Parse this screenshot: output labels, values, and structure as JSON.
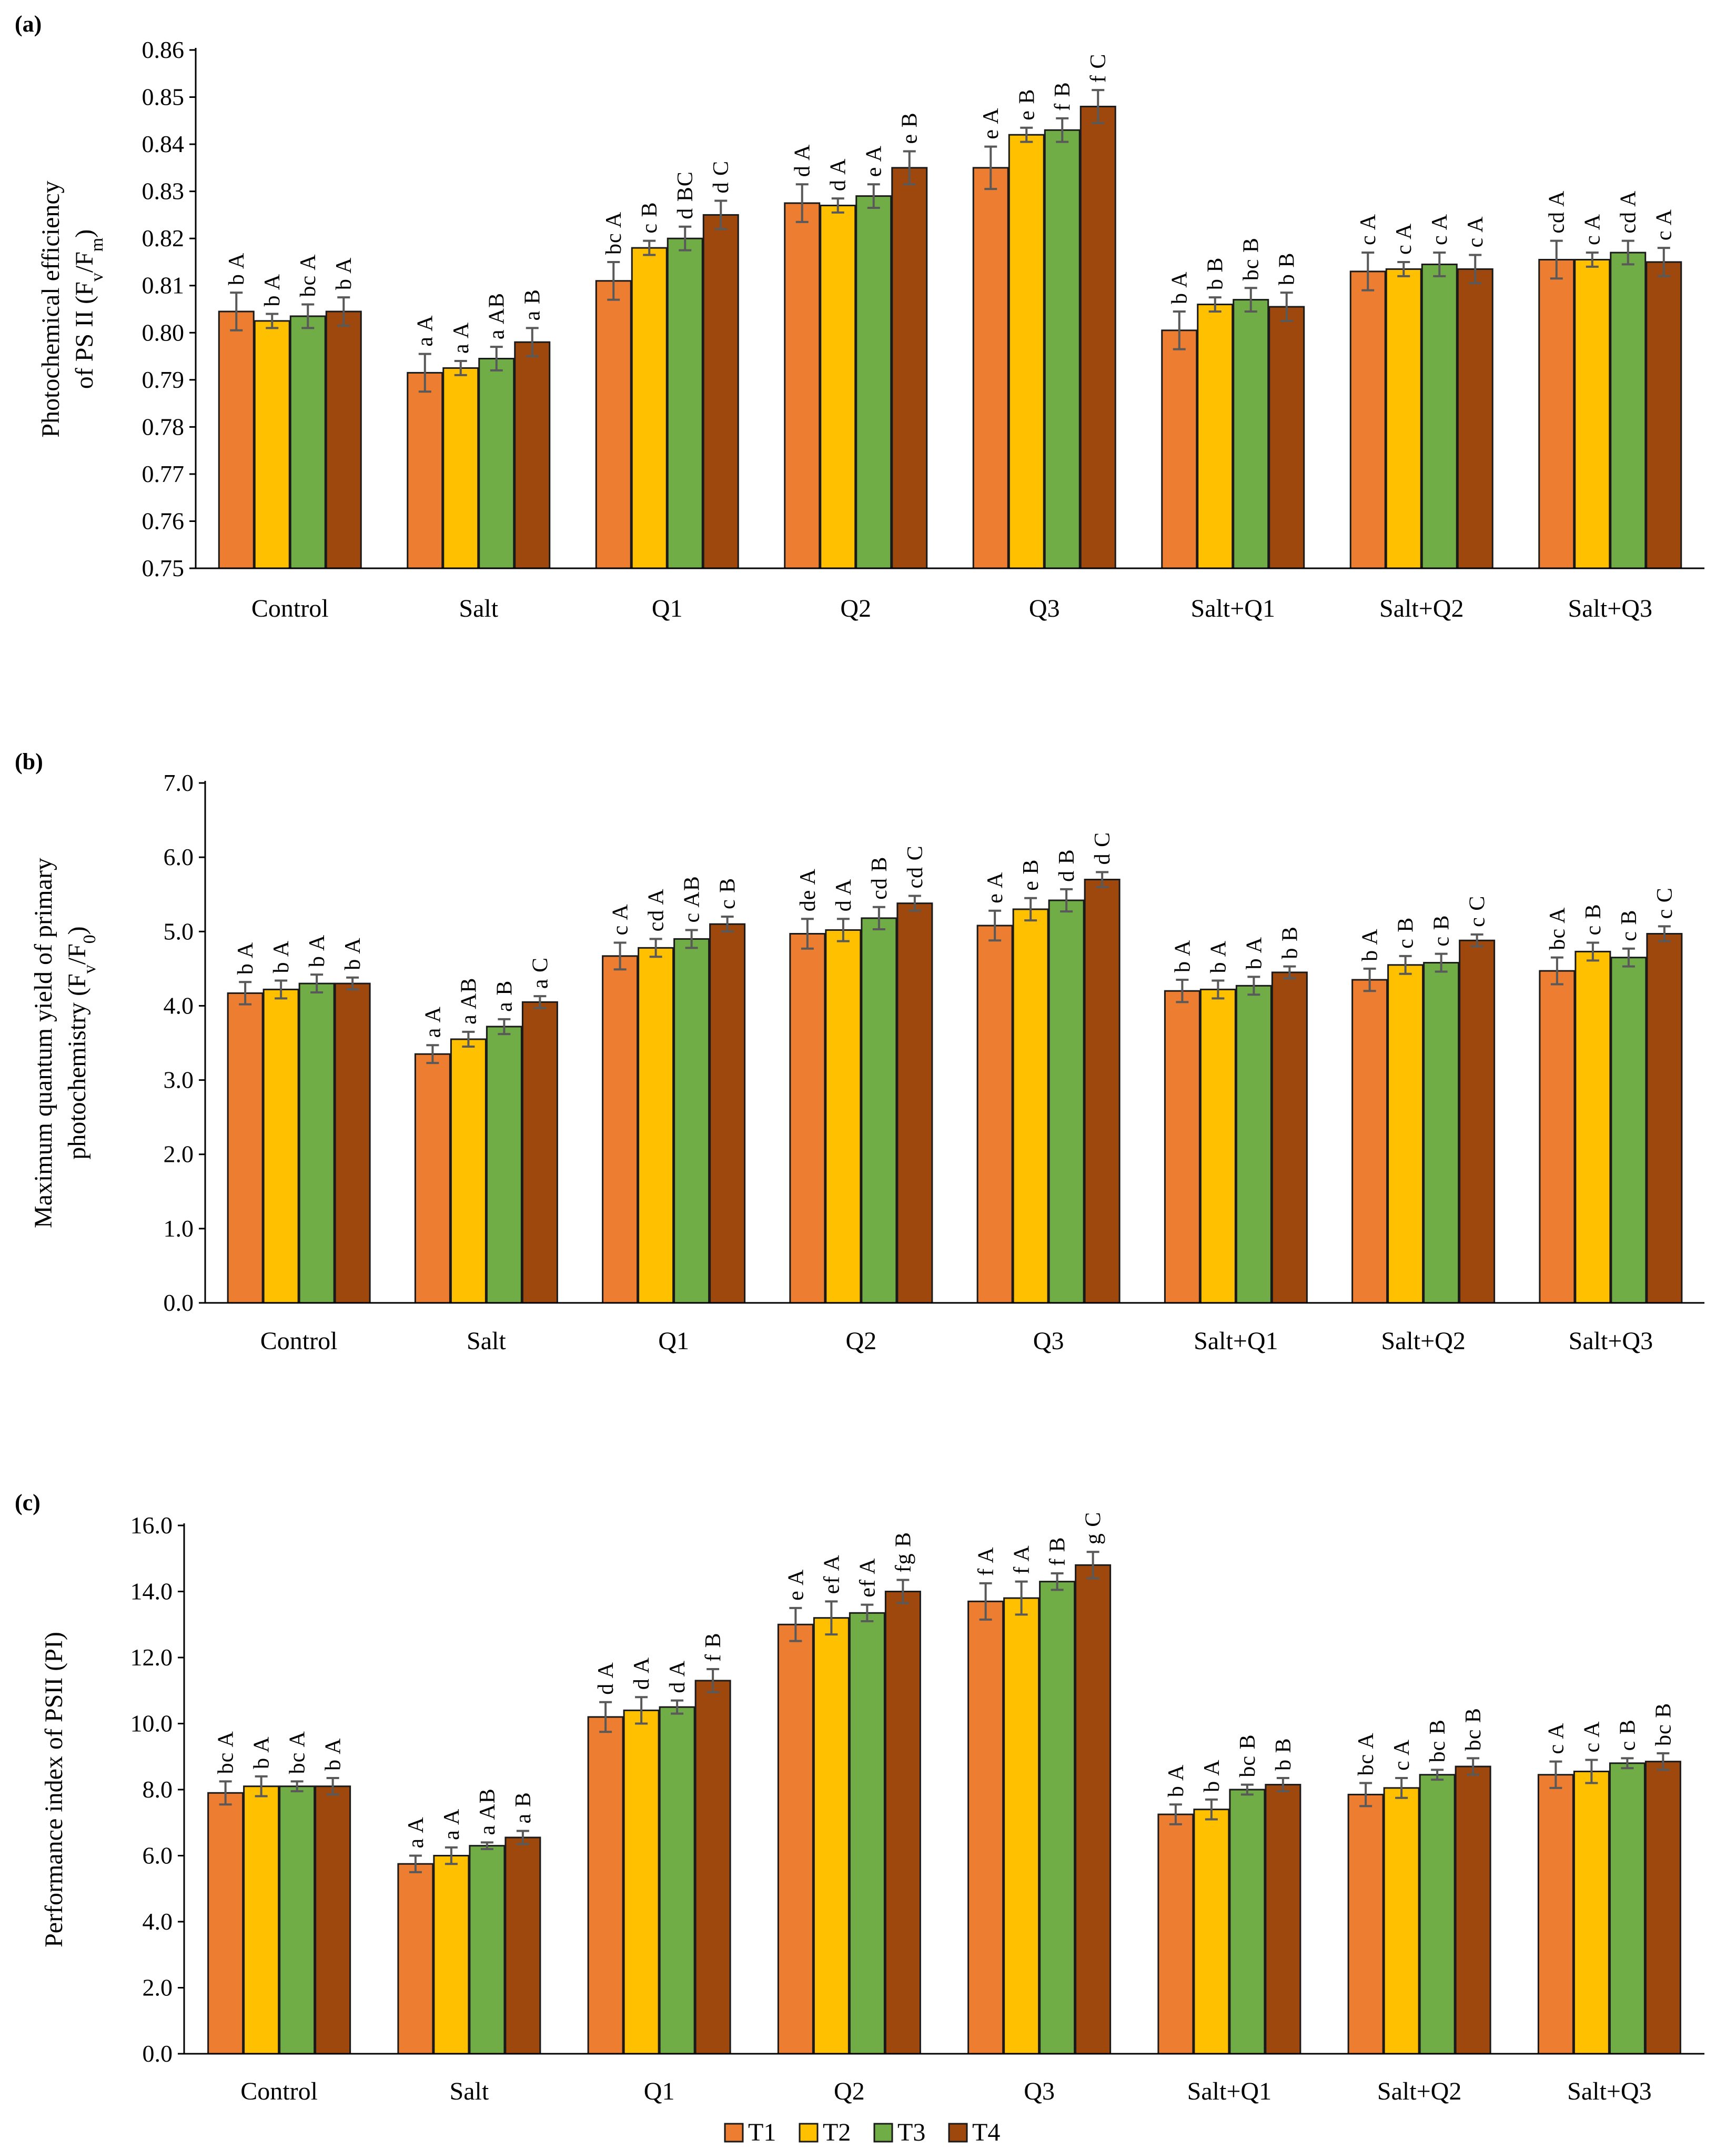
{
  "chart_data": [
    {
      "panel": "(a)",
      "type": "bar",
      "categories": [
        "Control",
        "Salt",
        "Q1",
        "Q2",
        "Q3",
        "Salt+Q1",
        "Salt+Q2",
        "Salt+Q3"
      ],
      "ylabel_lines": [
        "Photochemical efficiency",
        "of PS II (Fv/Fm)"
      ],
      "ylim": [
        0.75,
        0.86
      ],
      "yticks": [
        0.75,
        0.76,
        0.77,
        0.78,
        0.79,
        0.8,
        0.81,
        0.82,
        0.83,
        0.84,
        0.85,
        0.86
      ],
      "tick_decimals": 2,
      "series": [
        {
          "name": "T1",
          "color": "#ED7D31",
          "values": [
            0.8045,
            0.7915,
            0.811,
            0.8275,
            0.835,
            0.8005,
            0.813,
            0.8155
          ],
          "errors": [
            0.004,
            0.004,
            0.004,
            0.004,
            0.0045,
            0.004,
            0.004,
            0.004
          ],
          "labels": [
            "b A",
            "a A",
            "bc A",
            "d A",
            "e A",
            "b A",
            "c A",
            "cd A"
          ]
        },
        {
          "name": "T2",
          "color": "#FFC000",
          "values": [
            0.8025,
            0.7925,
            0.818,
            0.827,
            0.842,
            0.806,
            0.8135,
            0.8155
          ],
          "errors": [
            0.0015,
            0.0015,
            0.0015,
            0.0015,
            0.0015,
            0.0015,
            0.0015,
            0.0015
          ],
          "labels": [
            "b A",
            "a A",
            "c B",
            "d A",
            "e B",
            "b B",
            "c A",
            "c A"
          ]
        },
        {
          "name": "T3",
          "color": "#70AD47",
          "values": [
            0.8035,
            0.7945,
            0.82,
            0.829,
            0.843,
            0.807,
            0.8145,
            0.817
          ],
          "errors": [
            0.0025,
            0.0025,
            0.0025,
            0.0025,
            0.0025,
            0.0025,
            0.0025,
            0.0025
          ],
          "labels": [
            "bc A",
            "a AB",
            "d BC",
            "e A",
            "f B",
            "bc B",
            "c A",
            "cd A"
          ]
        },
        {
          "name": "T4",
          "color": "#9E480E",
          "values": [
            0.8045,
            0.798,
            0.825,
            0.835,
            0.848,
            0.8055,
            0.8135,
            0.815
          ],
          "errors": [
            0.003,
            0.003,
            0.003,
            0.0035,
            0.0035,
            0.003,
            0.003,
            0.003
          ],
          "labels": [
            "b A",
            "a B",
            "d C",
            "e B",
            "f C",
            "b B",
            "c A",
            "c A"
          ]
        }
      ]
    },
    {
      "panel": "(b)",
      "type": "bar",
      "categories": [
        "Control",
        "Salt",
        "Q1",
        "Q2",
        "Q3",
        "Salt+Q1",
        "Salt+Q2",
        "Salt+Q3"
      ],
      "ylabel_lines": [
        "Maximum quantum yield of primary",
        "photochemistry (Fv/F0)"
      ],
      "ylim": [
        0,
        7
      ],
      "yticks": [
        0,
        1,
        2,
        3,
        4,
        5,
        6,
        7
      ],
      "tick_decimals": 1,
      "series": [
        {
          "name": "T1",
          "color": "#ED7D31",
          "values": [
            4.17,
            3.35,
            4.67,
            4.97,
            5.08,
            4.2,
            4.35,
            4.47
          ],
          "errors": [
            0.15,
            0.12,
            0.18,
            0.2,
            0.2,
            0.15,
            0.15,
            0.18
          ],
          "labels": [
            "b A",
            "a A",
            "c A",
            "de A",
            "e A",
            "b A",
            "b A",
            "bc A"
          ]
        },
        {
          "name": "T2",
          "color": "#FFC000",
          "values": [
            4.22,
            3.55,
            4.78,
            5.02,
            5.3,
            4.22,
            4.55,
            4.73
          ],
          "errors": [
            0.12,
            0.1,
            0.12,
            0.15,
            0.15,
            0.12,
            0.12,
            0.12
          ],
          "labels": [
            "b A",
            "a AB",
            "cd A",
            "d A",
            "e B",
            "b A",
            "c B",
            "c B"
          ]
        },
        {
          "name": "T3",
          "color": "#70AD47",
          "values": [
            4.3,
            3.72,
            4.9,
            5.18,
            5.42,
            4.27,
            4.58,
            4.65
          ],
          "errors": [
            0.12,
            0.1,
            0.12,
            0.15,
            0.15,
            0.12,
            0.12,
            0.12
          ],
          "labels": [
            "b A",
            "a B",
            "c AB",
            "cd B",
            "d B",
            "b A",
            "c B",
            "c B"
          ]
        },
        {
          "name": "T4",
          "color": "#9E480E",
          "values": [
            4.3,
            4.05,
            5.1,
            5.38,
            5.7,
            4.45,
            4.88,
            4.97
          ],
          "errors": [
            0.08,
            0.08,
            0.1,
            0.1,
            0.1,
            0.08,
            0.08,
            0.1
          ],
          "labels": [
            "b A",
            "a C",
            "c B",
            "cd C",
            "d C",
            "b B",
            "c C",
            "c C"
          ]
        }
      ]
    },
    {
      "panel": "(c)",
      "type": "bar",
      "categories": [
        "Control",
        "Salt",
        "Q1",
        "Q2",
        "Q3",
        "Salt+Q1",
        "Salt+Q2",
        "Salt+Q3"
      ],
      "ylabel_lines": [
        "Performance index of PSII (PI)"
      ],
      "ylim": [
        0,
        16
      ],
      "yticks": [
        0,
        2,
        4,
        6,
        8,
        10,
        12,
        14,
        16
      ],
      "tick_decimals": 1,
      "series": [
        {
          "name": "T1",
          "color": "#ED7D31",
          "values": [
            7.9,
            5.75,
            10.2,
            13.0,
            13.7,
            7.25,
            7.85,
            8.45
          ],
          "errors": [
            0.35,
            0.25,
            0.45,
            0.5,
            0.55,
            0.3,
            0.35,
            0.4
          ],
          "labels": [
            "bc A",
            "a A",
            "d A",
            "e A",
            "f A",
            "b A",
            "bc A",
            "c A"
          ]
        },
        {
          "name": "T2",
          "color": "#FFC000",
          "values": [
            8.1,
            6.0,
            10.4,
            13.2,
            13.8,
            7.4,
            8.05,
            8.55
          ],
          "errors": [
            0.3,
            0.25,
            0.4,
            0.5,
            0.5,
            0.3,
            0.3,
            0.35
          ],
          "labels": [
            "b A",
            "a A",
            "d A",
            "ef A",
            "f A",
            "b A",
            "c A",
            "c A"
          ]
        },
        {
          "name": "T3",
          "color": "#70AD47",
          "values": [
            8.1,
            6.3,
            10.5,
            13.35,
            14.3,
            8.0,
            8.45,
            8.8
          ],
          "errors": [
            0.15,
            0.1,
            0.2,
            0.25,
            0.25,
            0.15,
            0.15,
            0.15
          ],
          "labels": [
            "bc A",
            "a AB",
            "d A",
            "ef A",
            "f B",
            "bc B",
            "bc B",
            "c B"
          ]
        },
        {
          "name": "T4",
          "color": "#9E480E",
          "values": [
            8.1,
            6.55,
            11.3,
            14.0,
            14.8,
            8.15,
            8.7,
            8.85
          ],
          "errors": [
            0.25,
            0.2,
            0.35,
            0.35,
            0.4,
            0.2,
            0.25,
            0.25
          ],
          "labels": [
            "b A",
            "a B",
            "f B",
            "fg B",
            "g C",
            "b B",
            "bc B",
            "bc B"
          ]
        }
      ]
    }
  ],
  "legend": [
    {
      "name": "T1",
      "color": "#ED7D31"
    },
    {
      "name": "T2",
      "color": "#FFC000"
    },
    {
      "name": "T3",
      "color": "#70AD47"
    },
    {
      "name": "T4",
      "color": "#9E480E"
    }
  ]
}
